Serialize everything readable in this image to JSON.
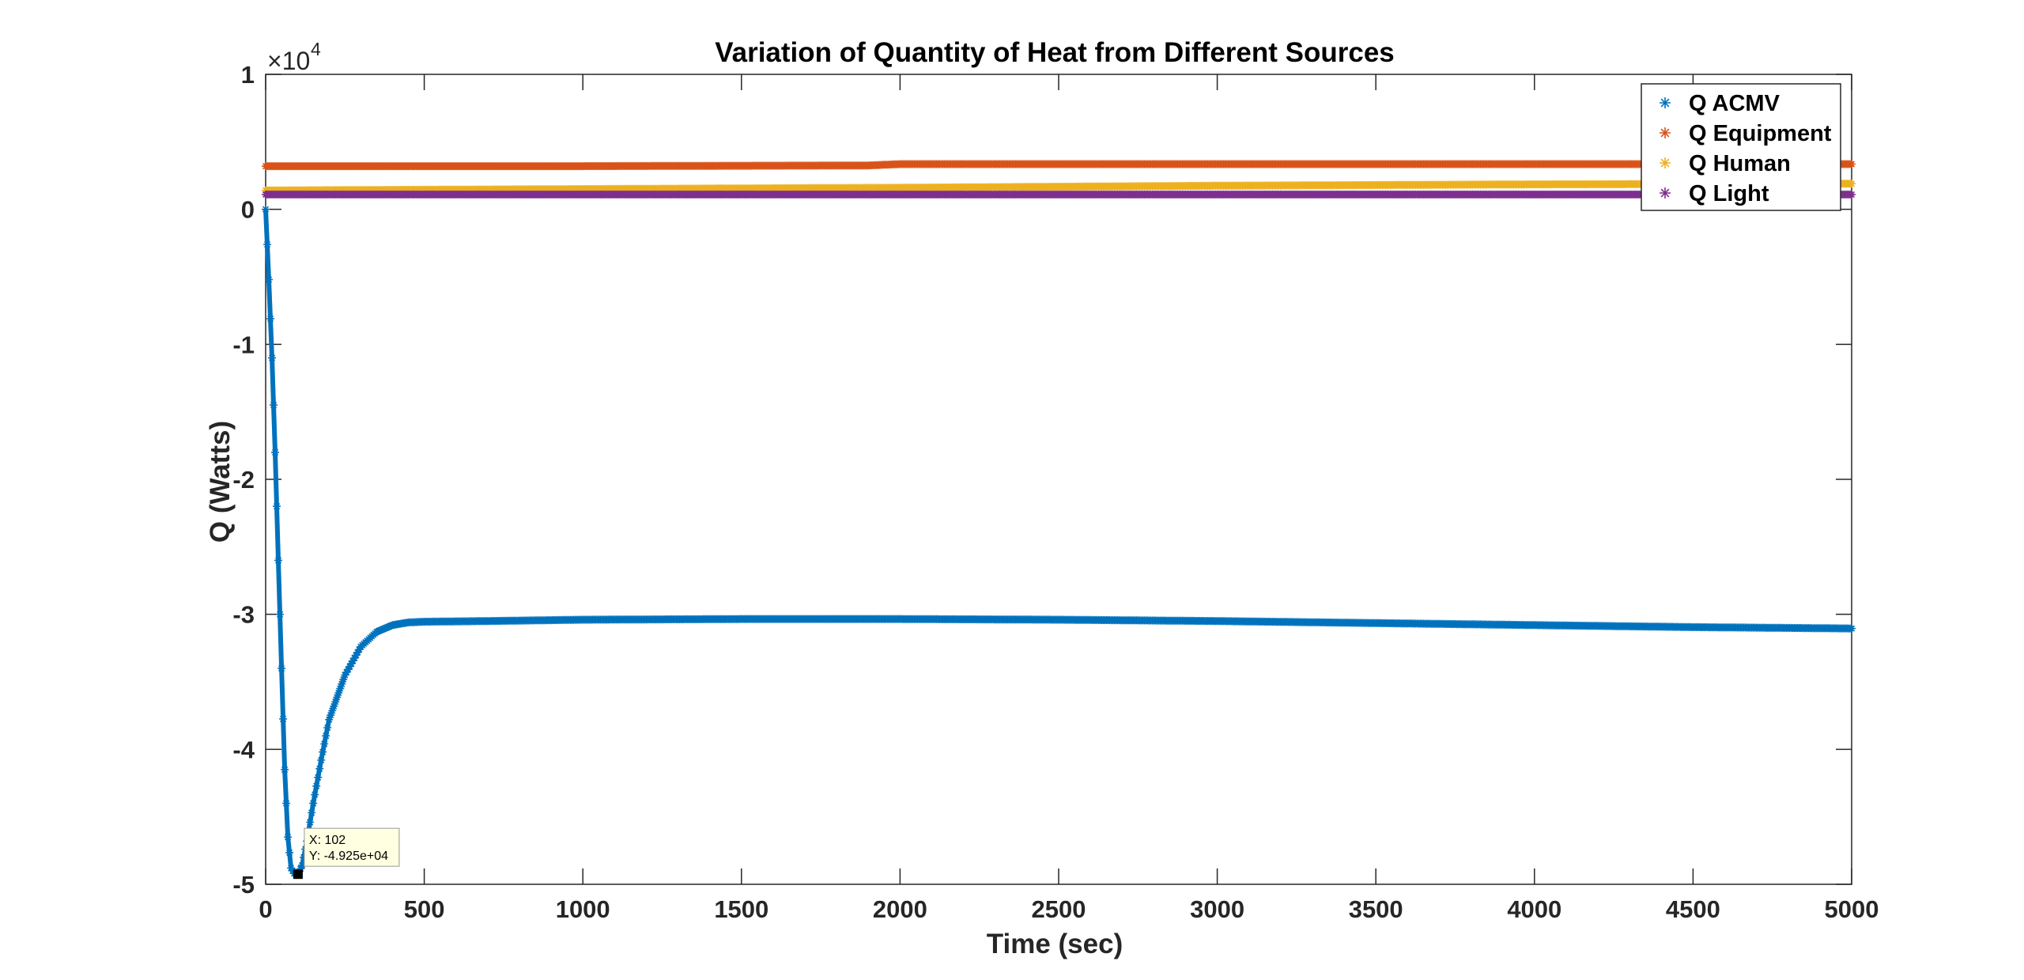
{
  "chart_data": {
    "type": "scatter",
    "title": "Variation of Quantity of Heat from Different Sources",
    "xlabel": "Time (sec)",
    "ylabel": "Q (Watts)",
    "y_exponent_label": "×10",
    "y_exponent_power": "4",
    "xlim": [
      0,
      5000
    ],
    "ylim": [
      -50000,
      10000
    ],
    "x_ticks": [
      0,
      500,
      1000,
      1500,
      2000,
      2500,
      3000,
      3500,
      4000,
      4500,
      5000
    ],
    "y_ticks": [
      -50000,
      -40000,
      -30000,
      -20000,
      -10000,
      0,
      10000
    ],
    "y_tick_labels": [
      "-5",
      "-4",
      "-3",
      "-2",
      "-1",
      "0",
      "1"
    ],
    "x_tick_labels": [
      "0",
      "500",
      "1000",
      "1500",
      "2000",
      "2500",
      "3000",
      "3500",
      "4000",
      "4500",
      "5000"
    ],
    "marker": "*",
    "legend_position": "top-right",
    "grid": false,
    "series": [
      {
        "name": "Q ACMV",
        "color": "#0072BD",
        "points": [
          [
            0,
            0
          ],
          [
            10,
            -5200
          ],
          [
            20,
            -11000
          ],
          [
            30,
            -18000
          ],
          [
            40,
            -26000
          ],
          [
            50,
            -34000
          ],
          [
            60,
            -41500
          ],
          [
            70,
            -46500
          ],
          [
            80,
            -48800
          ],
          [
            90,
            -49200
          ],
          [
            102,
            -49250
          ],
          [
            115,
            -48600
          ],
          [
            130,
            -46800
          ],
          [
            150,
            -44000
          ],
          [
            175,
            -40800
          ],
          [
            200,
            -37800
          ],
          [
            250,
            -34500
          ],
          [
            300,
            -32400
          ],
          [
            350,
            -31300
          ],
          [
            400,
            -30800
          ],
          [
            450,
            -30600
          ],
          [
            500,
            -30550
          ],
          [
            700,
            -30500
          ],
          [
            1000,
            -30400
          ],
          [
            1500,
            -30350
          ],
          [
            2000,
            -30350
          ],
          [
            2500,
            -30400
          ],
          [
            3000,
            -30500
          ],
          [
            3500,
            -30650
          ],
          [
            4000,
            -30800
          ],
          [
            4500,
            -30950
          ],
          [
            5000,
            -31050
          ]
        ]
      },
      {
        "name": "Q Equipment",
        "color": "#D95319",
        "points": [
          [
            0,
            3200
          ],
          [
            1000,
            3200
          ],
          [
            1900,
            3250
          ],
          [
            2000,
            3350
          ],
          [
            3000,
            3350
          ],
          [
            4000,
            3350
          ],
          [
            5000,
            3350
          ]
        ]
      },
      {
        "name": "Q Human",
        "color": "#EDB120",
        "points": [
          [
            0,
            1400
          ],
          [
            1000,
            1500
          ],
          [
            2000,
            1600
          ],
          [
            3000,
            1750
          ],
          [
            4000,
            1850
          ],
          [
            5000,
            1900
          ]
        ]
      },
      {
        "name": "Q Light",
        "color": "#7E2F8E",
        "points": [
          [
            0,
            1100
          ],
          [
            5000,
            1100
          ]
        ]
      }
    ],
    "datatip": {
      "x_label": "X: 102",
      "y_label": "Y: -4.925e+04",
      "x": 102,
      "y": -49250
    }
  }
}
